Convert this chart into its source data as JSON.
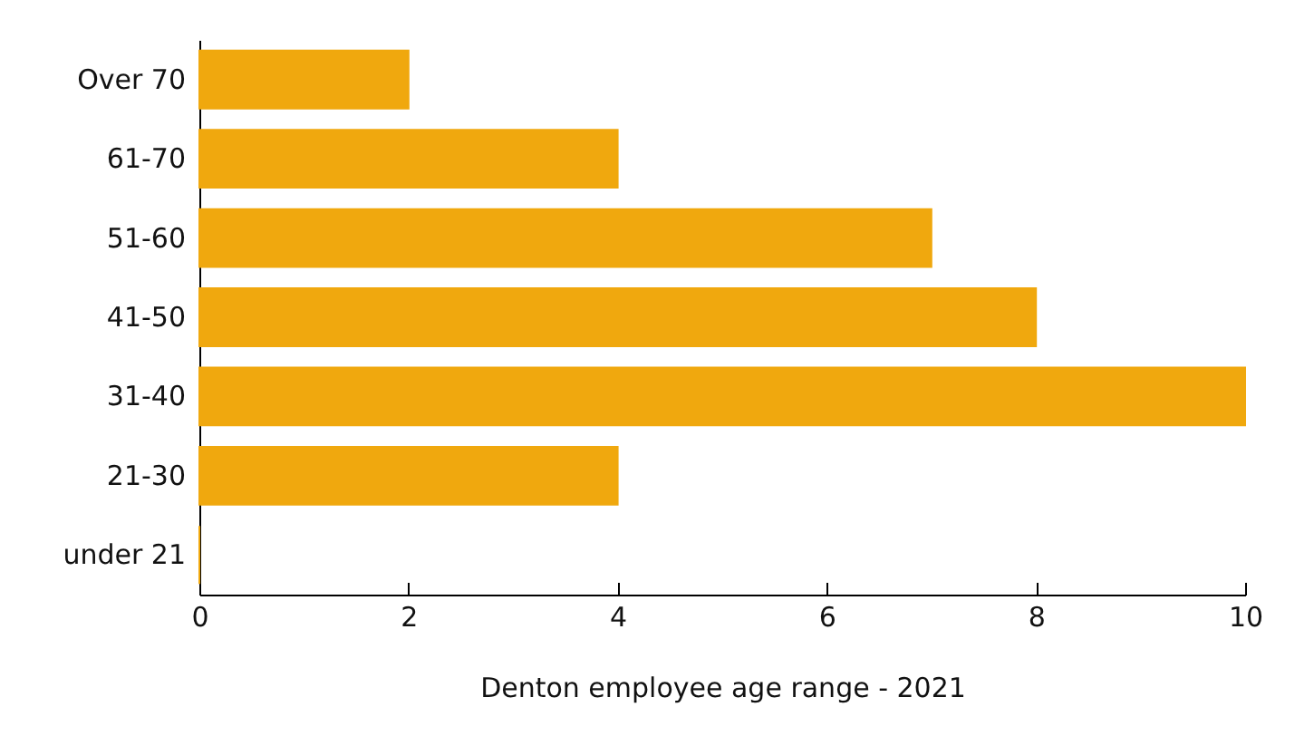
{
  "chart_data": {
    "type": "bar",
    "orientation": "horizontal",
    "xlabel": "Denton employee age range - 2021",
    "categories": [
      "Over 70",
      "61-70",
      "51-60",
      "41-50",
      "31-40",
      "21-30",
      "under 21"
    ],
    "values": [
      2,
      4,
      7,
      8,
      10,
      4,
      0
    ],
    "color": "#f0a80e",
    "xlim": [
      0,
      10
    ],
    "xticks": [
      0,
      2,
      4,
      6,
      8,
      10
    ],
    "grid": false
  }
}
